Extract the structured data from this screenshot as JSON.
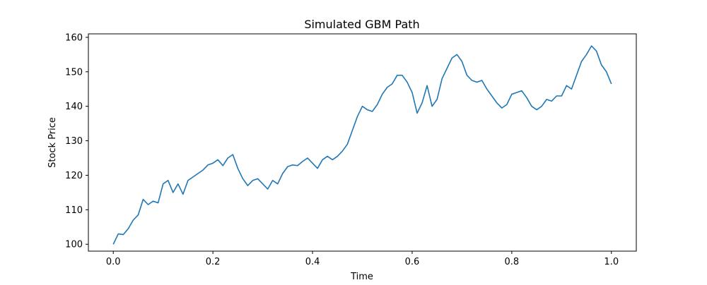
{
  "chart_data": {
    "type": "line",
    "title": "Simulated GBM Path",
    "xlabel": "Time",
    "ylabel": "Stock Price",
    "xlim": [
      -0.05,
      1.05
    ],
    "ylim": [
      98,
      161
    ],
    "x_ticks": [
      0.0,
      0.2,
      0.4,
      0.6,
      0.8,
      1.0
    ],
    "x_tick_labels": [
      "0.0",
      "0.2",
      "0.4",
      "0.6",
      "0.8",
      "1.0"
    ],
    "y_ticks": [
      100,
      110,
      120,
      130,
      140,
      150,
      160
    ],
    "y_tick_labels": [
      "100",
      "110",
      "120",
      "130",
      "140",
      "150",
      "160"
    ],
    "grid": false,
    "legend": "none",
    "line_color": "#1f77b4",
    "series": [
      {
        "x": [
          0.0,
          0.01,
          0.02,
          0.03,
          0.04,
          0.05,
          0.06,
          0.07,
          0.08,
          0.09,
          0.1,
          0.11,
          0.12,
          0.13,
          0.14,
          0.15,
          0.16,
          0.17,
          0.18,
          0.19,
          0.2,
          0.21,
          0.22,
          0.23,
          0.24,
          0.25,
          0.26,
          0.27,
          0.28,
          0.29,
          0.3,
          0.31,
          0.32,
          0.33,
          0.34,
          0.35,
          0.36,
          0.37,
          0.38,
          0.39,
          0.4,
          0.41,
          0.42,
          0.43,
          0.44,
          0.45,
          0.46,
          0.47,
          0.48,
          0.49,
          0.5,
          0.51,
          0.52,
          0.53,
          0.54,
          0.55,
          0.56,
          0.57,
          0.58,
          0.59,
          0.6,
          0.61,
          0.62,
          0.63,
          0.64,
          0.65,
          0.66,
          0.67,
          0.68,
          0.69,
          0.7,
          0.71,
          0.72,
          0.73,
          0.74,
          0.75,
          0.76,
          0.77,
          0.78,
          0.79,
          0.8,
          0.81,
          0.82,
          0.83,
          0.84,
          0.85,
          0.86,
          0.87,
          0.88,
          0.89,
          0.9,
          0.91,
          0.92,
          0.93,
          0.94,
          0.95,
          0.96,
          0.97,
          0.98,
          0.99,
          1.0
        ],
        "y": [
          100.0,
          103.0,
          102.8,
          104.5,
          107.0,
          108.5,
          113.0,
          111.5,
          112.5,
          112.0,
          117.5,
          118.5,
          115.0,
          117.5,
          114.5,
          118.5,
          119.5,
          120.5,
          121.5,
          123.0,
          123.5,
          124.5,
          122.8,
          125.0,
          126.0,
          122.0,
          119.0,
          117.0,
          118.5,
          119.0,
          117.5,
          116.0,
          118.5,
          117.5,
          120.5,
          122.5,
          123.0,
          122.8,
          124.0,
          125.0,
          123.5,
          122.0,
          124.5,
          125.5,
          124.5,
          125.5,
          127.0,
          129.0,
          133.0,
          137.0,
          140.0,
          139.0,
          138.5,
          140.5,
          143.5,
          145.5,
          146.5,
          149.0,
          149.0,
          147.0,
          144.0,
          138.0,
          141.0,
          146.0,
          140.0,
          142.0,
          148.0,
          151.0,
          154.0,
          155.0,
          153.0,
          149.0,
          147.5,
          147.0,
          147.5,
          145.0,
          143.0,
          141.0,
          139.5,
          140.5,
          143.5,
          144.0,
          144.5,
          142.5,
          140.0,
          139.0,
          140.0,
          142.0,
          141.5,
          143.0,
          143.0,
          146.0,
          145.0,
          149.0,
          153.0,
          155.0,
          157.5,
          156.0,
          152.0,
          150.0,
          146.5
        ]
      }
    ]
  }
}
